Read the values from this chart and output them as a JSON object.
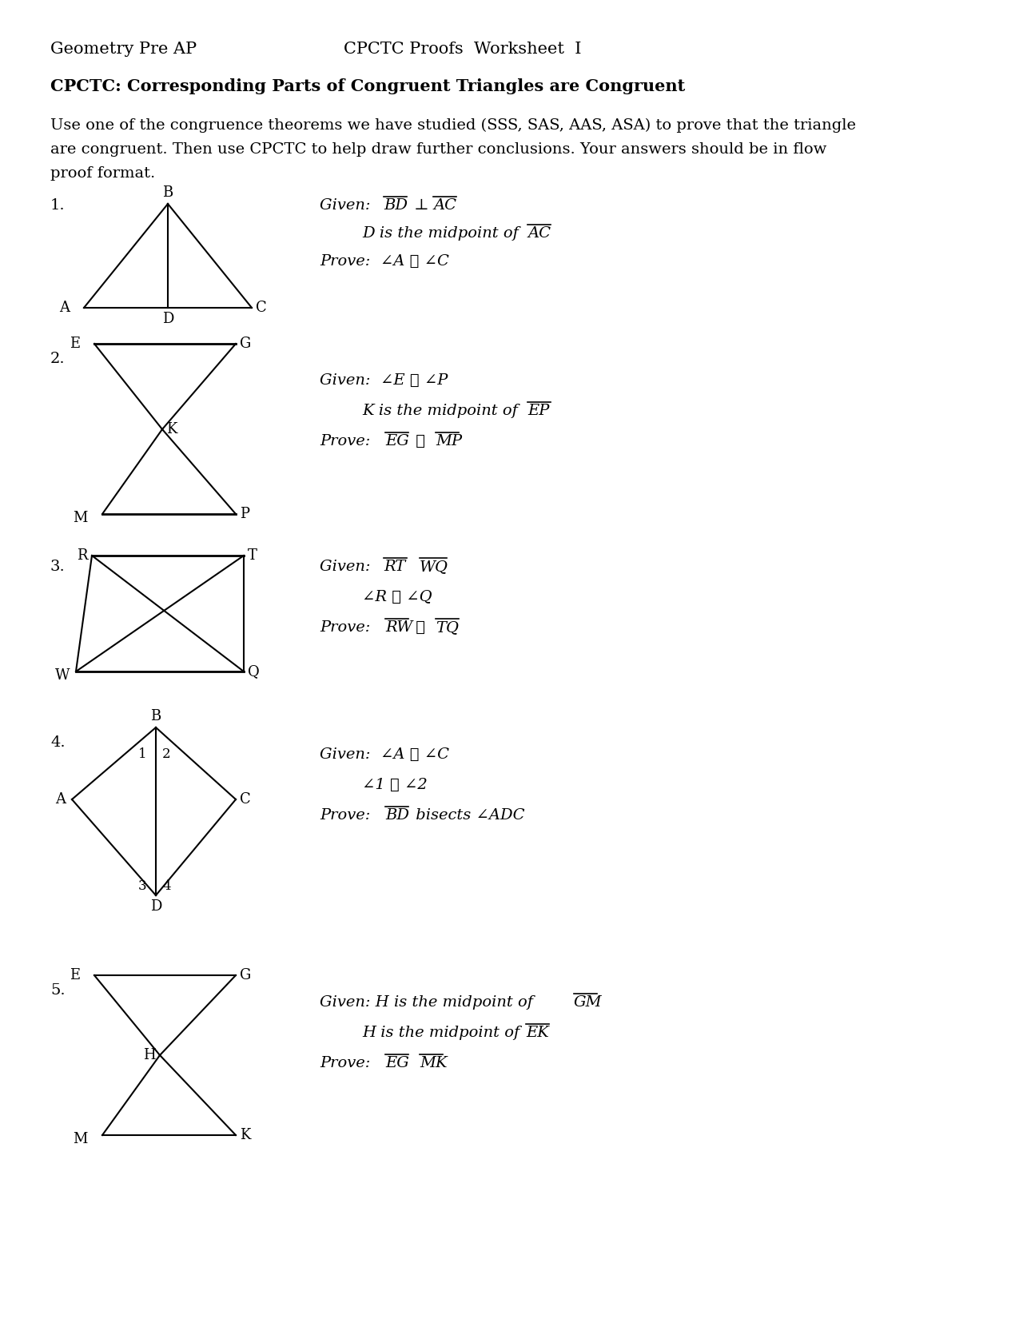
{
  "title_left": "Geometry Pre AP",
  "title_right": "CPCTC Proofs  Worksheet  I",
  "subtitle": "CPCTC: Corresponding Parts of Congruent Triangles are Congruent",
  "instructions_line1": "Use one of the congruence theorems we have studied (SSS, SAS, AAS, ASA) to prove that the triangle",
  "instructions_line2": "are congruent. Then use CPCTC to help draw further conclusions. Your answers should be in flow",
  "instructions_line3": "proof format.",
  "background": "#ffffff",
  "text_color": "#000000"
}
